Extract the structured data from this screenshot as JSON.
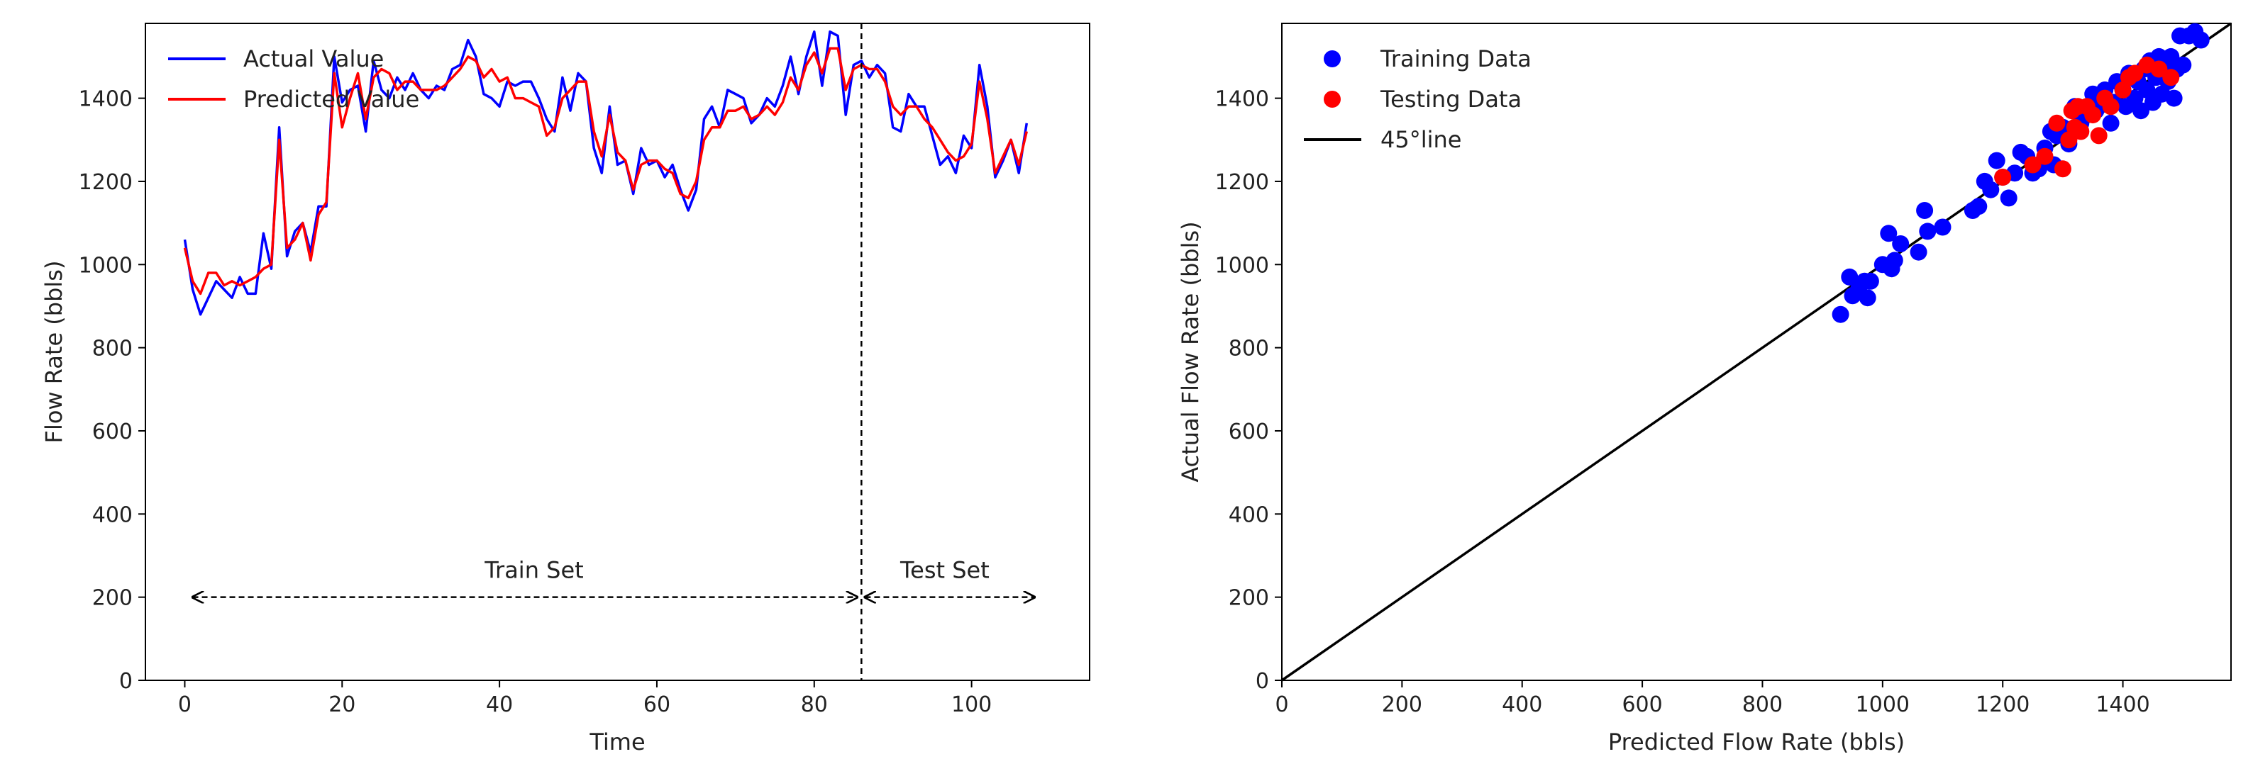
{
  "chart_data": [
    {
      "type": "line",
      "xlabel": "Time",
      "ylabel": "Flow Rate (bbls)",
      "xlim": [
        -5,
        115
      ],
      "ylim": [
        0,
        1580
      ],
      "xticks": [
        0,
        20,
        40,
        60,
        80,
        100
      ],
      "yticks": [
        0,
        200,
        400,
        600,
        800,
        1000,
        1200,
        1400
      ],
      "legend_position": "top-left",
      "series": [
        {
          "name": "Actual Value",
          "color": "#0000ff",
          "values": [
            1060,
            940,
            880,
            920,
            960,
            940,
            920,
            970,
            930,
            930,
            1075,
            990,
            1330,
            1020,
            1080,
            1100,
            1030,
            1140,
            1140,
            1500,
            1390,
            1420,
            1430,
            1320,
            1490,
            1420,
            1400,
            1450,
            1420,
            1460,
            1420,
            1400,
            1430,
            1420,
            1470,
            1480,
            1540,
            1500,
            1410,
            1400,
            1380,
            1440,
            1430,
            1440,
            1440,
            1400,
            1350,
            1320,
            1450,
            1370,
            1460,
            1440,
            1280,
            1220,
            1380,
            1240,
            1250,
            1170,
            1280,
            1240,
            1250,
            1210,
            1240,
            1180,
            1130,
            1180,
            1350,
            1380,
            1330,
            1420,
            1410,
            1400,
            1340,
            1360,
            1400,
            1380,
            1430,
            1500,
            1410,
            1500,
            1560,
            1430,
            1560,
            1550,
            1360,
            1480,
            1490,
            1450,
            1480,
            1460,
            1330,
            1320,
            1410,
            1380,
            1380,
            1310,
            1240,
            1260,
            1220,
            1310,
            1280,
            1480,
            1380,
            1210,
            1250,
            1300,
            1220,
            1340
          ]
        },
        {
          "name": "Predicted Value",
          "color": "#ff0000",
          "values": [
            1040,
            960,
            930,
            980,
            980,
            950,
            960,
            950,
            960,
            970,
            990,
            1000,
            1300,
            1040,
            1060,
            1100,
            1010,
            1120,
            1150,
            1460,
            1330,
            1400,
            1460,
            1350,
            1450,
            1470,
            1460,
            1420,
            1440,
            1440,
            1420,
            1420,
            1420,
            1430,
            1450,
            1470,
            1500,
            1490,
            1450,
            1470,
            1440,
            1450,
            1400,
            1400,
            1390,
            1380,
            1310,
            1330,
            1400,
            1420,
            1440,
            1440,
            1320,
            1260,
            1360,
            1270,
            1250,
            1180,
            1240,
            1250,
            1250,
            1230,
            1220,
            1170,
            1160,
            1200,
            1300,
            1330,
            1330,
            1370,
            1370,
            1380,
            1350,
            1360,
            1380,
            1360,
            1390,
            1450,
            1420,
            1480,
            1510,
            1460,
            1520,
            1520,
            1420,
            1470,
            1480,
            1470,
            1470,
            1440,
            1380,
            1360,
            1380,
            1380,
            1350,
            1330,
            1300,
            1270,
            1250,
            1260,
            1290,
            1440,
            1350,
            1220,
            1260,
            1300,
            1240,
            1320
          ]
        }
      ],
      "annotations": {
        "split_x": 86,
        "train_label": "Train Set",
        "test_label": "Test Set",
        "arrow_y": 200,
        "train_range": [
          1,
          86
        ],
        "test_range": [
          87,
          108
        ]
      }
    },
    {
      "type": "scatter",
      "xlabel": "Predicted Flow Rate (bbls)",
      "ylabel": "Actual Flow Rate (bbls)",
      "xlim": [
        0,
        1580
      ],
      "ylim": [
        0,
        1580
      ],
      "xticks": [
        0,
        200,
        400,
        600,
        800,
        1000,
        1200,
        1400
      ],
      "yticks": [
        0,
        200,
        400,
        600,
        800,
        1000,
        1200,
        1400
      ],
      "legend_position": "top-left",
      "series": [
        {
          "name": "Training Data",
          "color": "#0000ff",
          "points": [
            [
              930,
              880
            ],
            [
              945,
              970
            ],
            [
              950,
              925
            ],
            [
              960,
              940
            ],
            [
              970,
              960
            ],
            [
              975,
              920
            ],
            [
              980,
              960
            ],
            [
              1000,
              1000
            ],
            [
              1010,
              1075
            ],
            [
              1015,
              990
            ],
            [
              1020,
              1010
            ],
            [
              1030,
              1050
            ],
            [
              1060,
              1030
            ],
            [
              1070,
              1130
            ],
            [
              1075,
              1080
            ],
            [
              1100,
              1090
            ],
            [
              1150,
              1130
            ],
            [
              1160,
              1140
            ],
            [
              1170,
              1200
            ],
            [
              1180,
              1180
            ],
            [
              1190,
              1250
            ],
            [
              1200,
              1210
            ],
            [
              1210,
              1160
            ],
            [
              1220,
              1220
            ],
            [
              1230,
              1270
            ],
            [
              1240,
              1260
            ],
            [
              1250,
              1220
            ],
            [
              1260,
              1230
            ],
            [
              1270,
              1280
            ],
            [
              1280,
              1320
            ],
            [
              1285,
              1240
            ],
            [
              1290,
              1310
            ],
            [
              1300,
              1330
            ],
            [
              1310,
              1290
            ],
            [
              1320,
              1380
            ],
            [
              1330,
              1340
            ],
            [
              1340,
              1360
            ],
            [
              1350,
              1410
            ],
            [
              1355,
              1370
            ],
            [
              1360,
              1400
            ],
            [
              1370,
              1420
            ],
            [
              1380,
              1340
            ],
            [
              1385,
              1390
            ],
            [
              1390,
              1440
            ],
            [
              1400,
              1420
            ],
            [
              1405,
              1380
            ],
            [
              1410,
              1460
            ],
            [
              1420,
              1400
            ],
            [
              1425,
              1440
            ],
            [
              1430,
              1370
            ],
            [
              1435,
              1470
            ],
            [
              1440,
              1420
            ],
            [
              1445,
              1490
            ],
            [
              1450,
              1390
            ],
            [
              1455,
              1450
            ],
            [
              1460,
              1500
            ],
            [
              1465,
              1410
            ],
            [
              1470,
              1480
            ],
            [
              1475,
              1440
            ],
            [
              1480,
              1500
            ],
            [
              1485,
              1400
            ],
            [
              1490,
              1470
            ],
            [
              1495,
              1550
            ],
            [
              1500,
              1480
            ],
            [
              1510,
              1550
            ],
            [
              1520,
              1560
            ],
            [
              1530,
              1540
            ]
          ]
        },
        {
          "name": "Testing Data",
          "color": "#ff0000",
          "points": [
            [
              1200,
              1210
            ],
            [
              1250,
              1240
            ],
            [
              1270,
              1260
            ],
            [
              1290,
              1340
            ],
            [
              1300,
              1230
            ],
            [
              1310,
              1300
            ],
            [
              1315,
              1370
            ],
            [
              1320,
              1330
            ],
            [
              1325,
              1380
            ],
            [
              1330,
              1320
            ],
            [
              1340,
              1380
            ],
            [
              1350,
              1360
            ],
            [
              1360,
              1310
            ],
            [
              1370,
              1400
            ],
            [
              1380,
              1380
            ],
            [
              1400,
              1420
            ],
            [
              1410,
              1450
            ],
            [
              1420,
              1460
            ],
            [
              1440,
              1480
            ],
            [
              1460,
              1470
            ],
            [
              1480,
              1450
            ]
          ]
        },
        {
          "name": "45°line",
          "color": "#000000",
          "line": [
            [
              0,
              0
            ],
            [
              1580,
              1580
            ]
          ]
        }
      ]
    }
  ]
}
